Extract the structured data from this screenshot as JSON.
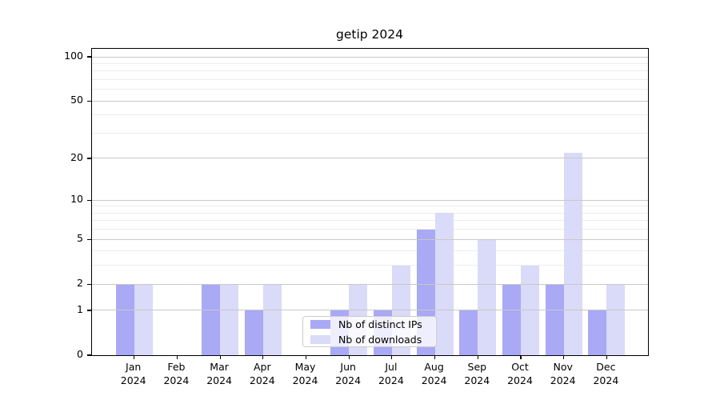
{
  "chart_data": {
    "type": "bar",
    "title": "getip 2024",
    "categories": [
      "Jan 2024",
      "Feb 2024",
      "Mar 2024",
      "Apr 2024",
      "May 2024",
      "Jun 2024",
      "Jul 2024",
      "Aug 2024",
      "Sep 2024",
      "Oct 2024",
      "Nov 2024",
      "Dec 2024"
    ],
    "category_line1": [
      "Jan",
      "Feb",
      "Mar",
      "Apr",
      "May",
      "Jun",
      "Jul",
      "Aug",
      "Sep",
      "Oct",
      "Nov",
      "Dec"
    ],
    "category_line2": "2024",
    "series": [
      {
        "name": "Nb of distinct IPs",
        "color": "#a9a9f6",
        "values": [
          2,
          0,
          2,
          1,
          0,
          1,
          1,
          6,
          1,
          2,
          2,
          1
        ]
      },
      {
        "name": "Nb of downloads",
        "color": "#dadaf9",
        "values": [
          2,
          0,
          2,
          2,
          0,
          2,
          3,
          8,
          5,
          3,
          22,
          2
        ]
      }
    ],
    "xlabel": "",
    "ylabel": "",
    "yscale": "log1p",
    "ylim": [
      0,
      113
    ],
    "yticks": [
      0,
      1,
      2,
      5,
      10,
      20,
      50,
      100
    ],
    "ytick_labels": [
      "0",
      "1",
      "2",
      "5",
      "10",
      "20",
      "50",
      "100"
    ],
    "minor_yticks": [
      3,
      4,
      6,
      7,
      8,
      9,
      30,
      40,
      60,
      70,
      80,
      90
    ],
    "grid": true,
    "legend_position": "lower center"
  },
  "colors": {
    "bar_distinct_ips": "#a9a9f6",
    "bar_downloads": "#dadaf9",
    "major_grid": "#c8c8c8",
    "minor_grid": "#ededed",
    "axis": "#000000",
    "legend_border": "#cccccc",
    "background": "#ffffff"
  }
}
